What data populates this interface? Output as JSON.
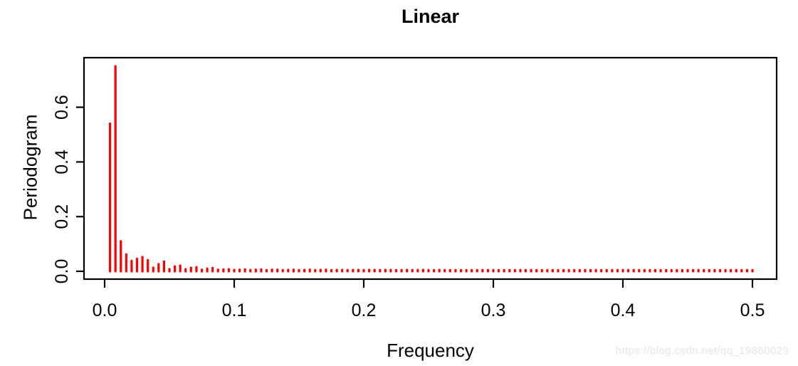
{
  "page": {
    "background": "#ffffff"
  },
  "watermark": {
    "text": "https://blog.csdn.net/qq_19860029"
  },
  "chart_data": {
    "type": "bar",
    "style": "R spike/needle periodogram (type='h')",
    "title": "Linear",
    "xlabel": "Frequency",
    "ylabel": "Periodogram",
    "x_tick_values": [
      0.0,
      0.1,
      0.2,
      0.3,
      0.4,
      0.5
    ],
    "x_tick_labels": [
      "0.0",
      "0.1",
      "0.2",
      "0.3",
      "0.4",
      "0.5"
    ],
    "y_tick_values": [
      0.0,
      0.2,
      0.4,
      0.6
    ],
    "y_tick_labels": [
      "0.0",
      "0.2",
      "0.4",
      "0.6"
    ],
    "xlim": [
      -0.02,
      0.52
    ],
    "ylim": [
      -0.03,
      0.78
    ],
    "grid": false,
    "legend": null,
    "bar_color": "#ff0000",
    "axis_color": "#000000",
    "n_frequencies": 120,
    "freq_start": 0.0041667,
    "freq_step": 0.0041667,
    "values": [
      0.54,
      0.75,
      0.11,
      0.062,
      0.038,
      0.046,
      0.052,
      0.041,
      0.013,
      0.026,
      0.036,
      0.008,
      0.018,
      0.021,
      0.008,
      0.013,
      0.015,
      0.006,
      0.01,
      0.012,
      0.006,
      0.007,
      0.008,
      0.005,
      0.006,
      0.007,
      0.004,
      0.006,
      0.007,
      0.004,
      0.006,
      0.006,
      0.004,
      0.005,
      0.006,
      0.004,
      0.005,
      0.006,
      0.004,
      0.005,
      0.006,
      0.004,
      0.005,
      0.005,
      0.004,
      0.005,
      0.005,
      0.003,
      0.005,
      0.005,
      0.004,
      0.005,
      0.005,
      0.004,
      0.004,
      0.005,
      0.003,
      0.004,
      0.005,
      0.003,
      0.004,
      0.005,
      0.003,
      0.004,
      0.004,
      0.003,
      0.004,
      0.004,
      0.003,
      0.004,
      0.004,
      0.003,
      0.004,
      0.004,
      0.003,
      0.004,
      0.004,
      0.003,
      0.004,
      0.004,
      0.003,
      0.004,
      0.004,
      0.003,
      0.004,
      0.004,
      0.003,
      0.003,
      0.004,
      0.003,
      0.003,
      0.004,
      0.003,
      0.003,
      0.004,
      0.003,
      0.003,
      0.004,
      0.003,
      0.003,
      0.004,
      0.003,
      0.003,
      0.004,
      0.003,
      0.003,
      0.003,
      0.003,
      0.003,
      0.003,
      0.003,
      0.003,
      0.003,
      0.003,
      0.003,
      0.003,
      0.003,
      0.003,
      0.003,
      0.003
    ]
  }
}
